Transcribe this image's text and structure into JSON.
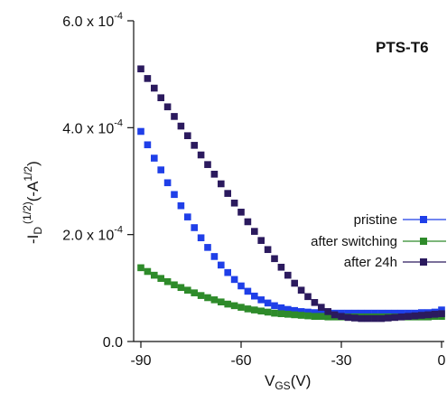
{
  "chart_data": {
    "type": "scatter",
    "title": "",
    "annotation": "PTS-T6",
    "xlabel_main": "V",
    "xlabel_sub": "GS",
    "xlabel_unit": "(V)",
    "ylabel_prefix": "-I",
    "ylabel_sub": "D",
    "ylabel_sup": "(1/2)",
    "ylabel_unit_open": "(-A",
    "ylabel_unit_sup": "1/2",
    "ylabel_unit_close": ")",
    "xlim": [
      -90,
      0
    ],
    "ylim": [
      0,
      0.0006
    ],
    "grid": false,
    "legend_position": "right",
    "x_ticks": [
      {
        "value": -90,
        "label": "-90"
      },
      {
        "value": -60,
        "label": "-60"
      },
      {
        "value": -30,
        "label": "-30"
      },
      {
        "value": 0,
        "label": "0"
      }
    ],
    "y_ticks": [
      {
        "value": 0,
        "mant": "0.0",
        "exp": ""
      },
      {
        "value": 0.0002,
        "mant": "2.0 x 10",
        "exp": "-4"
      },
      {
        "value": 0.0004,
        "mant": "4.0 x 10",
        "exp": "-4"
      },
      {
        "value": 0.0006,
        "mant": "6.0 x 10",
        "exp": "-4"
      }
    ],
    "x": [
      -90,
      -88,
      -86,
      -84,
      -82,
      -80,
      -78,
      -76,
      -74,
      -72,
      -70,
      -68,
      -66,
      -64,
      -62,
      -60,
      -58,
      -56,
      -54,
      -52,
      -50,
      -48,
      -46,
      -44,
      -42,
      -40,
      -38,
      -36,
      -34,
      -32,
      -30,
      -28,
      -26,
      -24,
      -22,
      -20,
      -18,
      -16,
      -14,
      -12,
      -10,
      -8,
      -6,
      -4,
      -2,
      0
    ],
    "series": [
      {
        "name": "pristine",
        "color": "#1f3fe8",
        "values": [
          0.000393,
          0.000368,
          0.000343,
          0.000321,
          0.000297,
          0.000275,
          0.000254,
          0.000233,
          0.000213,
          0.000194,
          0.000176,
          0.000159,
          0.000143,
          0.000129,
          0.000116,
          0.000104,
          9.4e-05,
          8.5e-05,
          7.8e-05,
          7.2e-05,
          6.7e-05,
          6.3e-05,
          6e-05,
          5.8e-05,
          5.6e-05,
          5.5e-05,
          5.4e-05,
          5.4e-05,
          5.3e-05,
          5.3e-05,
          5.3e-05,
          5.3e-05,
          5.3e-05,
          5.3e-05,
          5.3e-05,
          5.3e-05,
          5.3e-05,
          5.3e-05,
          5.3e-05,
          5.3e-05,
          5.3e-05,
          5.3e-05,
          5.4e-05,
          5.4e-05,
          5.5e-05,
          5.9e-05
        ]
      },
      {
        "name": "after switching",
        "color": "#2e8b2a",
        "values": [
          0.000138,
          0.000131,
          0.000124,
          0.000118,
          0.000112,
          0.000106,
          0.000101,
          9.6e-05,
          9.1e-05,
          8.6e-05,
          8.2e-05,
          7.8e-05,
          7.4e-05,
          7e-05,
          6.7e-05,
          6.4e-05,
          6.1e-05,
          5.9e-05,
          5.7e-05,
          5.5e-05,
          5.3e-05,
          5.2e-05,
          5.1e-05,
          5e-05,
          4.9e-05,
          4.8e-05,
          4.7e-05,
          4.7e-05,
          4.6e-05,
          4.6e-05,
          4.6e-05,
          4.6e-05,
          4.6e-05,
          4.6e-05,
          4.6e-05,
          4.6e-05,
          4.6e-05,
          4.6e-05,
          4.6e-05,
          4.6e-05,
          4.6e-05,
          4.6e-05,
          4.6e-05,
          4.6e-05,
          4.7e-05,
          4.7e-05
        ]
      },
      {
        "name": "after 24h",
        "color": "#2b1a5e",
        "values": [
          0.00051,
          0.000492,
          0.000474,
          0.000456,
          0.000439,
          0.000421,
          0.000403,
          0.000385,
          0.000367,
          0.000349,
          0.000331,
          0.000313,
          0.000295,
          0.000277,
          0.000259,
          0.000242,
          0.000224,
          0.000206,
          0.000189,
          0.000172,
          0.000155,
          0.000139,
          0.000124,
          0.000109,
          9.6e-05,
          8.4e-05,
          7.3e-05,
          6.4e-05,
          5.6e-05,
          5e-05,
          4.7e-05,
          4.5e-05,
          4.4e-05,
          4.3e-05,
          4.3e-05,
          4.3e-05,
          4.3e-05,
          4.4e-05,
          4.5e-05,
          4.6e-05,
          4.7e-05,
          4.8e-05,
          4.9e-05,
          5e-05,
          5.1e-05,
          5.2e-05
        ]
      }
    ]
  }
}
